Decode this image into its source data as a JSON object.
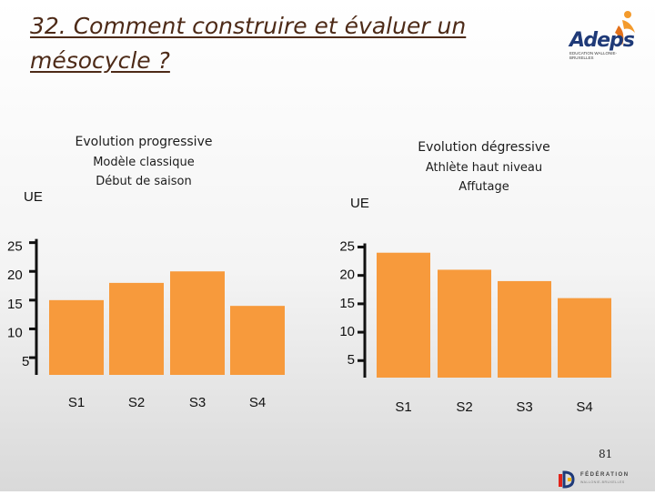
{
  "slide": {
    "title": "32. Comment construire et évaluer un mésocycle ?",
    "page_number": "81"
  },
  "logo": {
    "name": "Adeps",
    "subtitle": "EDUCATION WALLONIE-BRUXELLES"
  },
  "footer_logo": {
    "name": "FÉDÉRATION",
    "subtitle": "WALLONIE-BRUXELLES"
  },
  "colors": {
    "bar": "#f79a3c",
    "axis": "#111111",
    "title": "#4d2a17"
  },
  "chart_data": [
    {
      "type": "bar",
      "title": "Evolution progressive",
      "subtitle_lines": [
        "Modèle classique",
        "Début de saison"
      ],
      "ylabel": "UE",
      "categories": [
        "S1",
        "S2",
        "S3",
        "S4"
      ],
      "values": [
        15,
        18,
        20,
        14
      ],
      "yticks": [
        5,
        10,
        15,
        20,
        25
      ],
      "ylim": [
        2,
        27
      ]
    },
    {
      "type": "bar",
      "title": "Evolution dégressive",
      "subtitle_lines": [
        "Athlète haut niveau",
        "Affutage"
      ],
      "ylabel": "UE",
      "categories": [
        "S1",
        "S2",
        "S3",
        "S4"
      ],
      "values": [
        24,
        21,
        19,
        16
      ],
      "yticks": [
        5,
        10,
        15,
        20,
        25
      ],
      "ylim": [
        2,
        27
      ]
    }
  ]
}
